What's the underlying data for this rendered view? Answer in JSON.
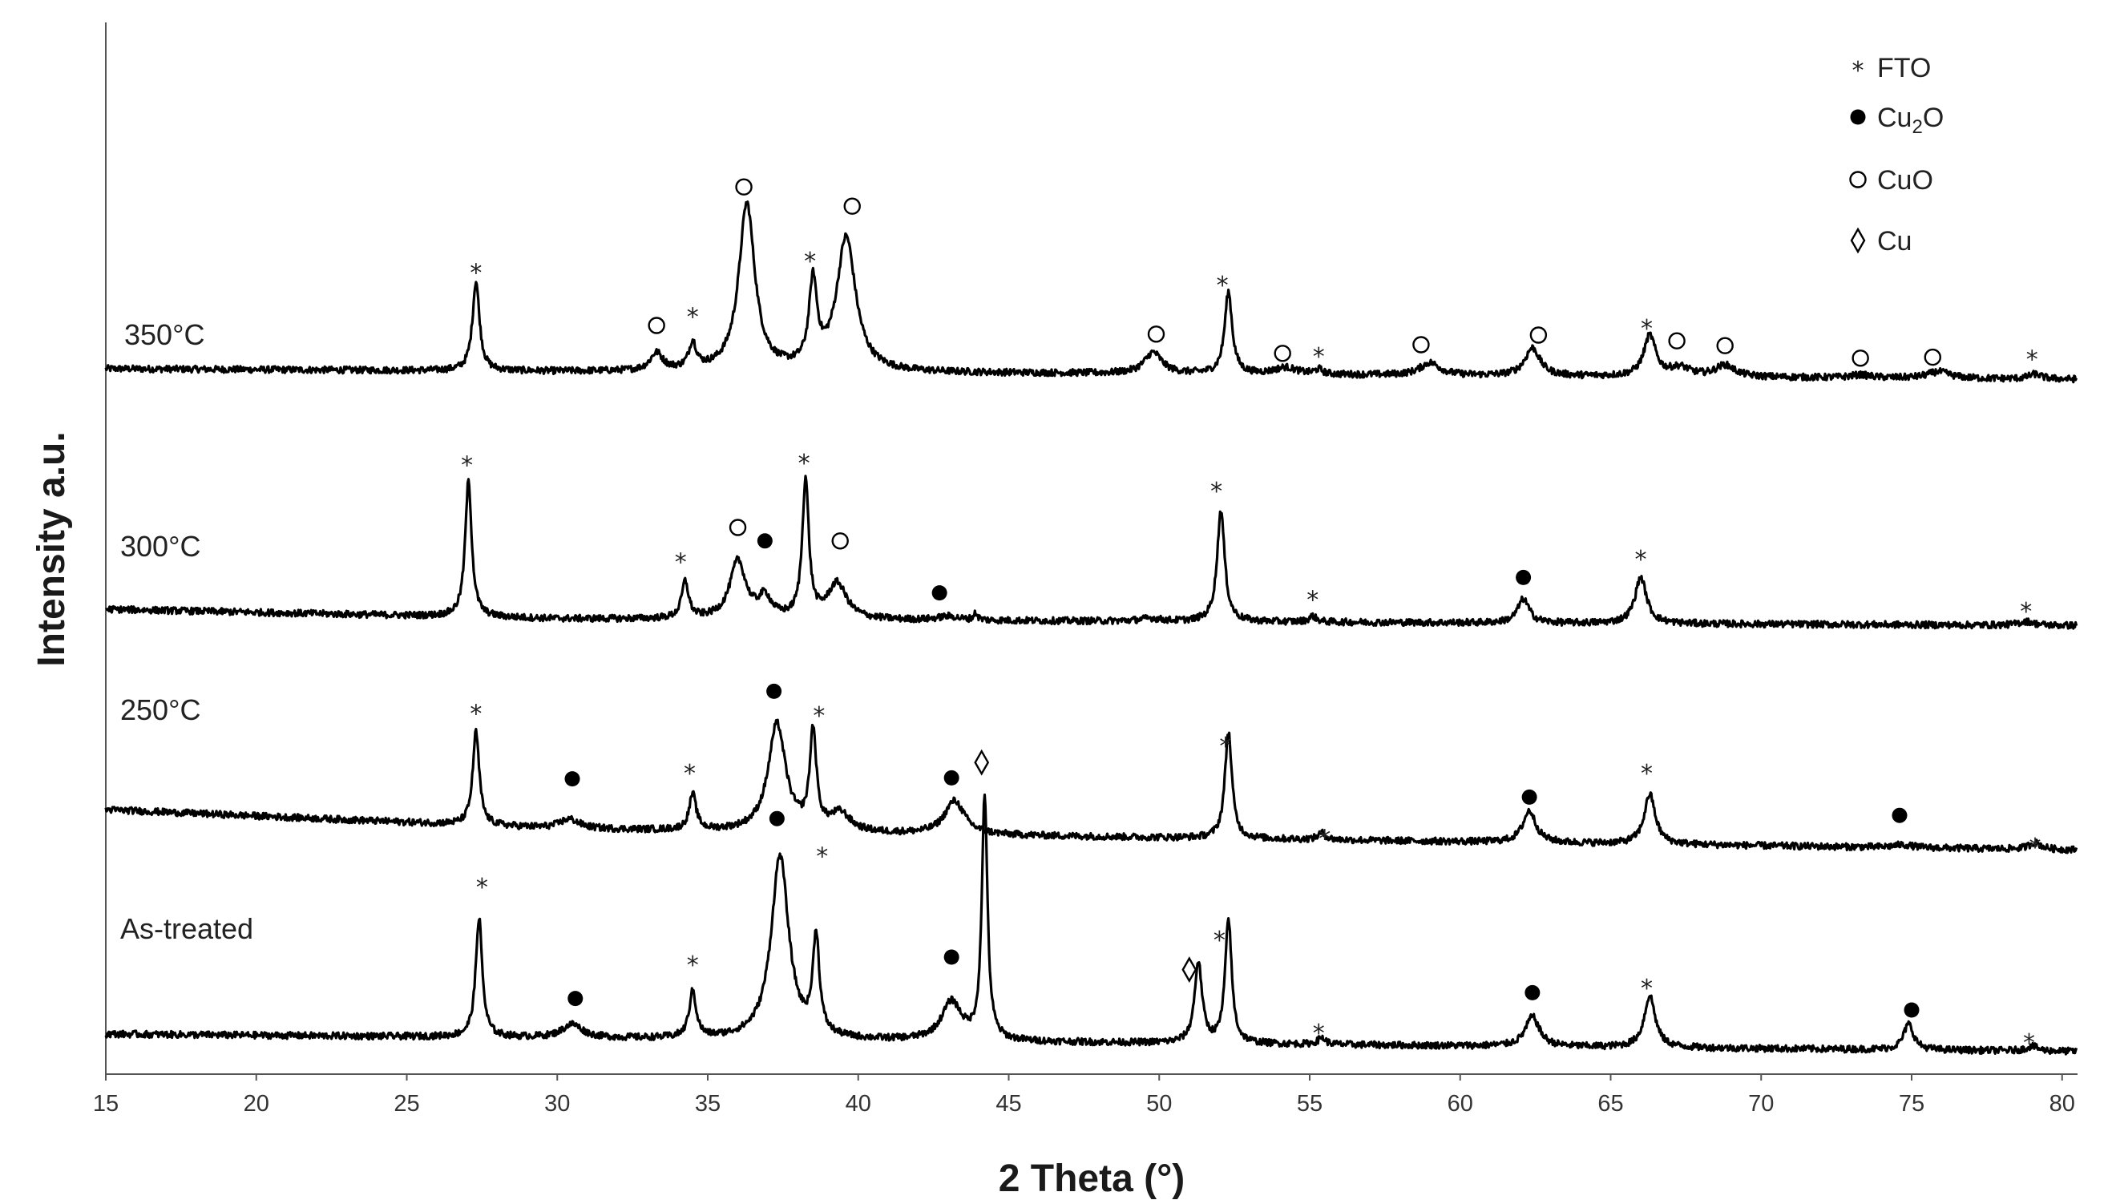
{
  "chart_data": {
    "type": "line",
    "xlabel": "2 Theta (°)",
    "ylabel": "Intensity a.u.",
    "xlim": [
      15,
      80.5
    ],
    "x_ticks": [
      "15",
      "20",
      "25",
      "30",
      "35",
      "40",
      "45",
      "50",
      "55",
      "60",
      "65",
      "70",
      "75",
      "80"
    ],
    "grid": false,
    "legend_position": "top-right",
    "legend": [
      {
        "symbol": "star",
        "label": "FTO"
      },
      {
        "symbol": "filled-circle",
        "label": "Cu",
        "sub": "2",
        "suffix": "O"
      },
      {
        "symbol": "open-circle",
        "label": "CuO"
      },
      {
        "symbol": "diamond",
        "label": "Cu"
      }
    ],
    "series": [
      {
        "name": "350°C",
        "baseline": [
          [
            15,
            0.5
          ],
          [
            30,
            0.47
          ],
          [
            47,
            0.45
          ],
          [
            80.5,
            0.39
          ]
        ],
        "peaks": [
          {
            "x": 27.3,
            "h": 0.93,
            "w": 0.14
          },
          {
            "x": 33.3,
            "h": 0.18,
            "w": 0.25
          },
          {
            "x": 34.5,
            "h": 0.27,
            "w": 0.15
          },
          {
            "x": 36.3,
            "h": 1.74,
            "w": 0.32
          },
          {
            "x": 38.5,
            "h": 0.87,
            "w": 0.16
          },
          {
            "x": 39.6,
            "h": 1.39,
            "w": 0.38
          },
          {
            "x": 49.8,
            "h": 0.22,
            "w": 0.35
          },
          {
            "x": 52.3,
            "h": 0.85,
            "w": 0.15
          },
          {
            "x": 54.2,
            "h": 0.07,
            "w": 0.45
          },
          {
            "x": 55.3,
            "h": 0.05,
            "w": 0.15
          },
          {
            "x": 59.0,
            "h": 0.13,
            "w": 0.4
          },
          {
            "x": 62.4,
            "h": 0.29,
            "w": 0.3
          },
          {
            "x": 66.3,
            "h": 0.42,
            "w": 0.24
          },
          {
            "x": 67.3,
            "h": 0.09,
            "w": 0.4
          },
          {
            "x": 68.8,
            "h": 0.12,
            "w": 0.4
          },
          {
            "x": 73.3,
            "h": 0.03,
            "w": 0.4
          },
          {
            "x": 75.9,
            "h": 0.07,
            "w": 0.45
          },
          {
            "x": 79.1,
            "h": 0.05,
            "w": 0.25
          }
        ],
        "annotations": [
          {
            "x": 27.3,
            "y": 1.53,
            "symbol": "star"
          },
          {
            "x": 33.3,
            "y": 0.95,
            "symbol": "open-circle"
          },
          {
            "x": 34.5,
            "y": 1.07,
            "symbol": "star"
          },
          {
            "x": 36.2,
            "y": 2.39,
            "symbol": "open-circle"
          },
          {
            "x": 38.4,
            "y": 1.65,
            "symbol": "star"
          },
          {
            "x": 39.8,
            "y": 2.19,
            "symbol": "open-circle"
          },
          {
            "x": 49.9,
            "y": 0.86,
            "symbol": "open-circle"
          },
          {
            "x": 52.1,
            "y": 1.4,
            "symbol": "star"
          },
          {
            "x": 54.1,
            "y": 0.66,
            "symbol": "open-circle"
          },
          {
            "x": 55.3,
            "y": 0.66,
            "symbol": "star"
          },
          {
            "x": 58.7,
            "y": 0.75,
            "symbol": "open-circle"
          },
          {
            "x": 62.6,
            "y": 0.85,
            "symbol": "open-circle"
          },
          {
            "x": 66.2,
            "y": 0.95,
            "symbol": "star"
          },
          {
            "x": 67.2,
            "y": 0.79,
            "symbol": "open-circle"
          },
          {
            "x": 68.8,
            "y": 0.74,
            "symbol": "open-circle"
          },
          {
            "x": 73.3,
            "y": 0.61,
            "symbol": "open-circle"
          },
          {
            "x": 75.7,
            "y": 0.62,
            "symbol": "open-circle"
          },
          {
            "x": 79.0,
            "y": 0.63,
            "symbol": "star"
          }
        ]
      },
      {
        "name": "300°C",
        "baseline": [
          [
            15,
            0.0
          ],
          [
            30,
            -0.1
          ],
          [
            80.5,
            -0.17
          ]
        ],
        "peaks": [
          {
            "x": 27.05,
            "h": 1.41,
            "w": 0.13
          },
          {
            "x": 34.25,
            "h": 0.38,
            "w": 0.14
          },
          {
            "x": 36.0,
            "h": 0.6,
            "w": 0.32
          },
          {
            "x": 36.9,
            "h": 0.21,
            "w": 0.25
          },
          {
            "x": 38.25,
            "h": 1.43,
            "w": 0.13
          },
          {
            "x": 39.3,
            "h": 0.37,
            "w": 0.38
          },
          {
            "x": 43.0,
            "h": 0.04,
            "w": 0.4
          },
          {
            "x": 43.9,
            "h": 0.07,
            "w": 0.08
          },
          {
            "x": 49.7,
            "h": 0.03,
            "w": 0.4
          },
          {
            "x": 52.05,
            "h": 1.16,
            "w": 0.15
          },
          {
            "x": 55.1,
            "h": 0.06,
            "w": 0.15
          },
          {
            "x": 62.1,
            "h": 0.25,
            "w": 0.23
          },
          {
            "x": 66.0,
            "h": 0.48,
            "w": 0.23
          },
          {
            "x": 78.8,
            "h": 0.04,
            "w": 0.3
          }
        ],
        "annotations": [
          {
            "x": 27.0,
            "y": 1.53,
            "symbol": "star"
          },
          {
            "x": 34.1,
            "y": 0.52,
            "symbol": "star"
          },
          {
            "x": 36.0,
            "y": 0.85,
            "symbol": "open-circle"
          },
          {
            "x": 36.9,
            "y": 0.71,
            "symbol": "filled-circle"
          },
          {
            "x": 38.2,
            "y": 1.55,
            "symbol": "star"
          },
          {
            "x": 39.4,
            "y": 0.71,
            "symbol": "open-circle"
          },
          {
            "x": 42.7,
            "y": 0.17,
            "symbol": "filled-circle"
          },
          {
            "x": 51.9,
            "y": 1.26,
            "symbol": "star"
          },
          {
            "x": 55.1,
            "y": 0.13,
            "symbol": "star"
          },
          {
            "x": 62.1,
            "y": 0.33,
            "symbol": "filled-circle"
          },
          {
            "x": 66.0,
            "y": 0.55,
            "symbol": "star"
          },
          {
            "x": 78.8,
            "y": 0.01,
            "symbol": "star"
          }
        ]
      },
      {
        "name": "250°C",
        "baseline": [
          [
            15,
            0.0
          ],
          [
            30,
            -0.2
          ],
          [
            40,
            -0.25
          ],
          [
            80.5,
            -0.42
          ]
        ],
        "peaks": [
          {
            "x": 27.3,
            "h": 0.97,
            "w": 0.13
          },
          {
            "x": 30.4,
            "h": 0.1,
            "w": 0.4
          },
          {
            "x": 34.5,
            "h": 0.37,
            "w": 0.14
          },
          {
            "x": 37.3,
            "h": 1.12,
            "w": 0.35
          },
          {
            "x": 38.5,
            "h": 1.01,
            "w": 0.13
          },
          {
            "x": 39.4,
            "h": 0.19,
            "w": 0.4
          },
          {
            "x": 43.2,
            "h": 0.35,
            "w": 0.4
          },
          {
            "x": 52.3,
            "h": 1.11,
            "w": 0.14
          },
          {
            "x": 55.4,
            "h": 0.07,
            "w": 0.15
          },
          {
            "x": 62.3,
            "h": 0.33,
            "w": 0.26
          },
          {
            "x": 66.3,
            "h": 0.52,
            "w": 0.22
          },
          {
            "x": 74.7,
            "h": 0.03,
            "w": 0.4
          },
          {
            "x": 79.1,
            "h": 0.07,
            "w": 0.25
          }
        ],
        "annotations": [
          {
            "x": 27.3,
            "y": 1.03,
            "symbol": "star"
          },
          {
            "x": 30.5,
            "y": 0.32,
            "symbol": "filled-circle"
          },
          {
            "x": 34.4,
            "y": 0.41,
            "symbol": "star"
          },
          {
            "x": 37.2,
            "y": 1.23,
            "symbol": "filled-circle"
          },
          {
            "x": 38.7,
            "y": 1.01,
            "symbol": "star"
          },
          {
            "x": 43.1,
            "y": 0.33,
            "symbol": "filled-circle"
          },
          {
            "x": 44.1,
            "y": 0.49,
            "symbol": "diamond"
          },
          {
            "x": 52.2,
            "y": 0.69,
            "symbol": "star"
          },
          {
            "x": 55.5,
            "y": -0.27,
            "symbol": "star"
          },
          {
            "x": 62.3,
            "y": 0.13,
            "symbol": "filled-circle"
          },
          {
            "x": 66.2,
            "y": 0.41,
            "symbol": "star"
          },
          {
            "x": 74.6,
            "y": -0.06,
            "symbol": "filled-circle"
          },
          {
            "x": 79.1,
            "y": -0.36,
            "symbol": "star"
          }
        ]
      },
      {
        "name": "As-treated",
        "baseline": [
          [
            15,
            0.0
          ],
          [
            80.5,
            -0.18
          ]
        ],
        "peaks": [
          {
            "x": 27.4,
            "h": 1.24,
            "w": 0.13
          },
          {
            "x": 30.5,
            "h": 0.14,
            "w": 0.4
          },
          {
            "x": 34.5,
            "h": 0.48,
            "w": 0.14
          },
          {
            "x": 37.4,
            "h": 1.91,
            "w": 0.35
          },
          {
            "x": 38.6,
            "h": 1.01,
            "w": 0.13
          },
          {
            "x": 43.1,
            "h": 0.4,
            "w": 0.4
          },
          {
            "x": 44.2,
            "h": 2.54,
            "w": 0.11
          },
          {
            "x": 51.3,
            "h": 0.84,
            "w": 0.15
          },
          {
            "x": 52.3,
            "h": 1.29,
            "w": 0.13
          },
          {
            "x": 55.4,
            "h": 0.07,
            "w": 0.15
          },
          {
            "x": 62.4,
            "h": 0.31,
            "w": 0.28
          },
          {
            "x": 66.3,
            "h": 0.54,
            "w": 0.22
          },
          {
            "x": 74.9,
            "h": 0.27,
            "w": 0.2
          },
          {
            "x": 79.0,
            "h": 0.05,
            "w": 0.22
          }
        ],
        "annotations": [
          {
            "x": 27.5,
            "y": 1.56,
            "symbol": "star"
          },
          {
            "x": 30.6,
            "y": 0.37,
            "symbol": "filled-circle"
          },
          {
            "x": 34.5,
            "y": 0.75,
            "symbol": "star"
          },
          {
            "x": 37.3,
            "y": 2.24,
            "symbol": "filled-circle"
          },
          {
            "x": 38.8,
            "y": 1.88,
            "symbol": "star"
          },
          {
            "x": 43.1,
            "y": 0.8,
            "symbol": "filled-circle"
          },
          {
            "x": 51.0,
            "y": 0.67,
            "symbol": "diamond"
          },
          {
            "x": 52.0,
            "y": 1.01,
            "symbol": "star"
          },
          {
            "x": 55.3,
            "y": 0.04,
            "symbol": "star"
          },
          {
            "x": 62.4,
            "y": 0.43,
            "symbol": "filled-circle"
          },
          {
            "x": 66.2,
            "y": 0.51,
            "symbol": "star"
          },
          {
            "x": 75.0,
            "y": 0.25,
            "symbol": "filled-circle"
          },
          {
            "x": 78.9,
            "y": -0.06,
            "symbol": "star"
          }
        ]
      }
    ]
  }
}
